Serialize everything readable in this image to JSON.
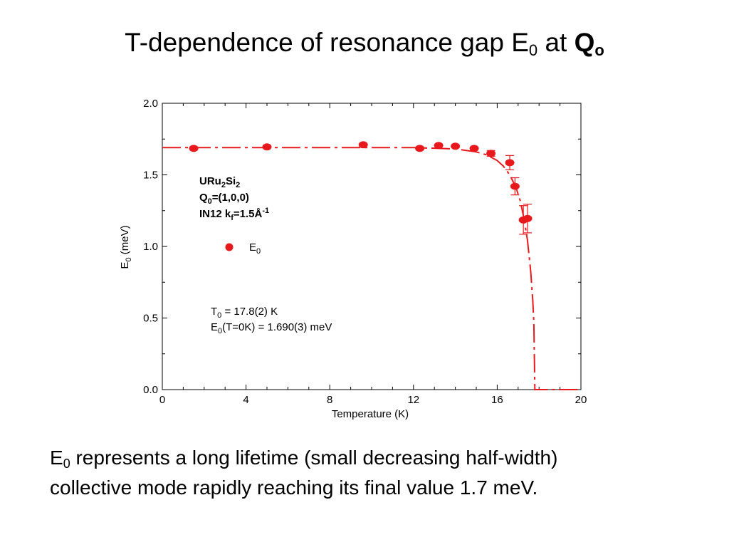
{
  "slide": {
    "title": {
      "prefix": "T-dependence of resonance gap E",
      "sub": "0",
      "mid": " at ",
      "bold": "Q",
      "bold_sub": "o"
    },
    "caption": {
      "prefix": "E",
      "sub": "0",
      "line1_rest": " represents a long lifetime (small decreasing half-width)",
      "line2": "collective mode rapidly reaching its final value 1.7 meV."
    }
  },
  "chart_data": {
    "type": "scatter",
    "xlabel": "Temperature (K)",
    "ylabel_main": "E",
    "ylabel_sub": "0",
    "ylabel_unit": " (meV)",
    "xlim": [
      0,
      20
    ],
    "ylim": [
      0,
      2.0
    ],
    "xticks": [
      0,
      4,
      8,
      12,
      16,
      20
    ],
    "yticks": [
      0.0,
      0.5,
      1.0,
      1.5,
      2.0
    ],
    "ytick_labels": [
      "0.0",
      "0.5",
      "1.0",
      "1.5",
      "2.0"
    ],
    "color": "#e8191c",
    "series": [
      {
        "name": "E0",
        "x": [
          1.5,
          5.0,
          9.6,
          12.3,
          13.2,
          14.0,
          14.9,
          15.7,
          16.6,
          16.85,
          17.25,
          17.45
        ],
        "y": [
          1.685,
          1.695,
          1.71,
          1.685,
          1.705,
          1.7,
          1.685,
          1.65,
          1.585,
          1.42,
          1.185,
          1.195
        ],
        "err": [
          0.0,
          0.0,
          0.0,
          0.0,
          0.0,
          0.0,
          0.0,
          0.02,
          0.05,
          0.06,
          0.1,
          0.1
        ]
      }
    ],
    "fit": {
      "T0": 17.8,
      "E0": 1.69,
      "x": [
        0,
        2,
        4,
        6,
        8,
        10,
        12,
        13,
        14,
        15,
        15.5,
        16,
        16.3,
        16.6,
        16.9,
        17.1,
        17.3,
        17.45,
        17.6,
        17.7,
        17.75,
        17.8,
        20
      ],
      "y": [
        1.69,
        1.69,
        1.69,
        1.69,
        1.69,
        1.69,
        1.69,
        1.686,
        1.681,
        1.66,
        1.64,
        1.6,
        1.56,
        1.5,
        1.41,
        1.32,
        1.18,
        1.04,
        0.83,
        0.62,
        0.46,
        0.0,
        0.0
      ]
    },
    "legend": {
      "line1": {
        "main": "URu",
        "sub1": "2",
        "mid": "Si",
        "sub2": "2"
      },
      "line2": {
        "main": "Q",
        "sub1": "0",
        "rest": "=(1,0,0)"
      },
      "line3": {
        "main": "IN12 k",
        "sub1": "f",
        "rest": "=1.5Å",
        "sup": "-1"
      },
      "marker_label_main": "E",
      "marker_label_sub": "0"
    },
    "annotation": {
      "line1_main": "T",
      "line1_sub": "0",
      "line1_rest": " = 17.8(2) K",
      "line2_main": "E",
      "line2_sub": "0",
      "line2_rest": "(T=0K) = 1.690(3) meV"
    }
  }
}
